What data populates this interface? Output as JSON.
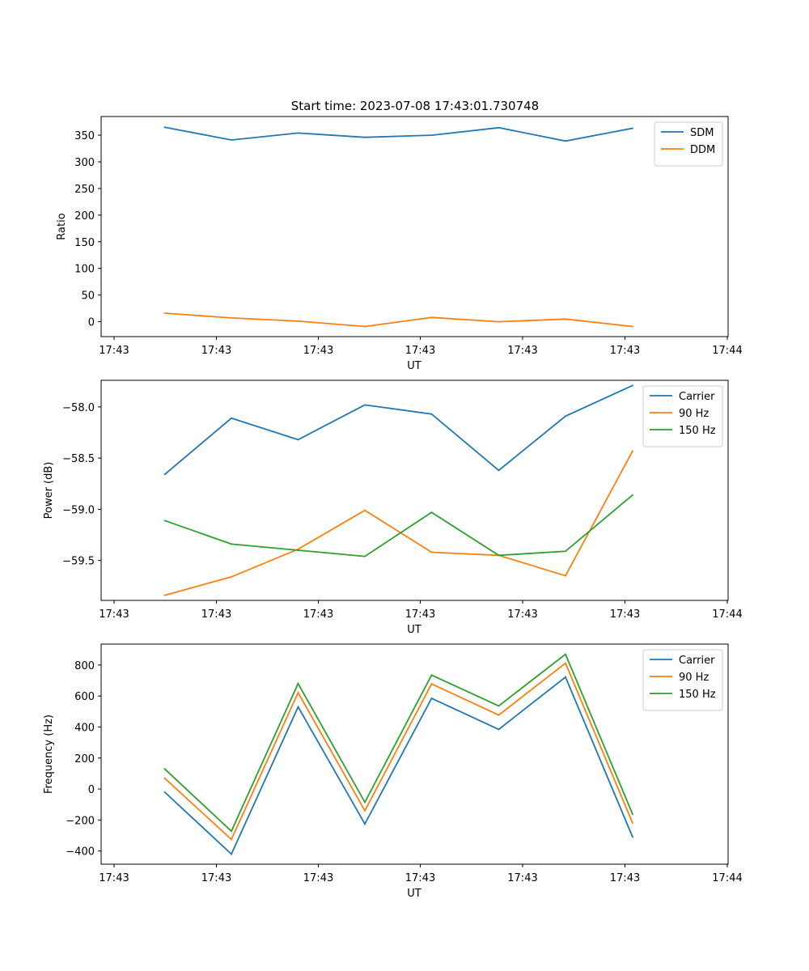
{
  "figure": {
    "title": "Start time: 2023-07-08 17:43:01.730748"
  },
  "colors": {
    "blue": "#1f77b4",
    "orange": "#ff7f0e",
    "green": "#2ca02c"
  },
  "chart_data": [
    {
      "type": "line",
      "title": "Start time: 2023-07-08 17:43:01.730748",
      "xlabel": "UT",
      "ylabel": "Ratio",
      "legend_position": "top-right",
      "x_tick_labels": [
        "17:43",
        "17:43",
        "17:43",
        "17:43",
        "17:43",
        "17:43",
        "17:43"
      ],
      "x_last_tick_label": "17:44",
      "y_ticks": [
        0,
        50,
        100,
        150,
        200,
        250,
        300,
        350
      ],
      "y_tick_labels": [
        "0",
        "50",
        "100",
        "150",
        "200",
        "250",
        "300",
        "350"
      ],
      "ylim": [
        -28,
        385
      ],
      "series": [
        {
          "name": "SDM",
          "color": "#1f77b4",
          "values": [
            365,
            341,
            354,
            346,
            350,
            364,
            339,
            363
          ]
        },
        {
          "name": "DDM",
          "color": "#ff7f0e",
          "values": [
            16,
            7,
            1,
            -9,
            8,
            0,
            5,
            -9
          ]
        }
      ]
    },
    {
      "type": "line",
      "title": "",
      "xlabel": "UT",
      "ylabel": "Power (dB)",
      "legend_position": "top-right",
      "x_tick_labels": [
        "17:43",
        "17:43",
        "17:43",
        "17:43",
        "17:43",
        "17:43",
        "17:43"
      ],
      "x_last_tick_label": "17:44",
      "y_ticks": [
        -59.5,
        -59.0,
        -58.5,
        -58.0
      ],
      "y_tick_labels": [
        "−59.5",
        "−59.0",
        "−58.5",
        "−58.0"
      ],
      "ylim": [
        -59.89,
        -57.74
      ],
      "series": [
        {
          "name": "Carrier",
          "color": "#1f77b4",
          "values": [
            -58.66,
            -58.11,
            -58.32,
            -57.98,
            -58.07,
            -58.62,
            -58.09,
            -57.79
          ]
        },
        {
          "name": "90 Hz",
          "color": "#ff7f0e",
          "values": [
            -59.84,
            -59.66,
            -59.39,
            -59.01,
            -59.42,
            -59.45,
            -59.65,
            -58.43
          ]
        },
        {
          "name": "150 Hz",
          "color": "#2ca02c",
          "values": [
            -59.11,
            -59.34,
            -59.4,
            -59.46,
            -59.03,
            -59.45,
            -59.41,
            -58.86
          ]
        }
      ]
    },
    {
      "type": "line",
      "title": "",
      "xlabel": "UT",
      "ylabel": "Frequency (Hz)",
      "legend_position": "top-right",
      "x_tick_labels": [
        "17:43",
        "17:43",
        "17:43",
        "17:43",
        "17:43",
        "17:43",
        "17:43"
      ],
      "x_last_tick_label": "17:44",
      "y_ticks": [
        -400,
        -200,
        0,
        200,
        400,
        600,
        800
      ],
      "y_tick_labels": [
        "−400",
        "−200",
        "0",
        "200",
        "400",
        "600",
        "800"
      ],
      "ylim": [
        -485,
        935
      ],
      "series": [
        {
          "name": "Carrier",
          "color": "#1f77b4",
          "values": [
            -20,
            -420,
            530,
            -225,
            585,
            385,
            722,
            -310
          ]
        },
        {
          "name": "90 Hz",
          "color": "#ff7f0e",
          "values": [
            70,
            -325,
            622,
            -140,
            678,
            477,
            812,
            -220
          ]
        },
        {
          "name": "150 Hz",
          "color": "#2ca02c",
          "values": [
            130,
            -272,
            680,
            -85,
            735,
            536,
            870,
            -163
          ]
        }
      ]
    }
  ]
}
